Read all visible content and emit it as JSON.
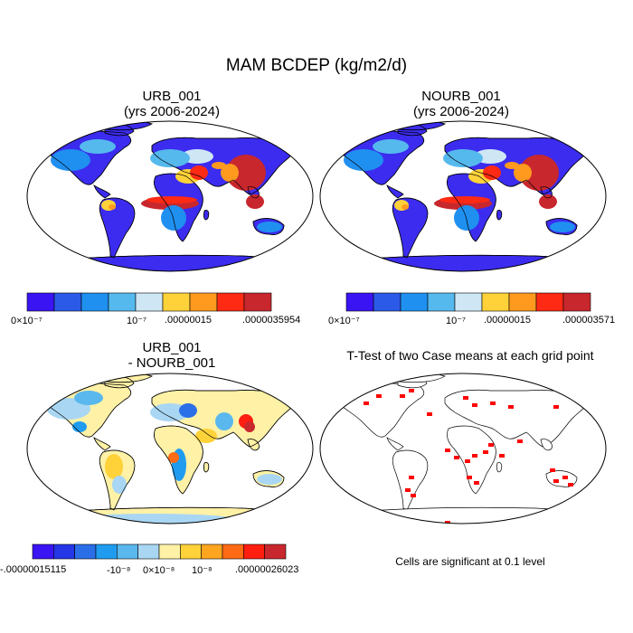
{
  "figure": {
    "title": "MAM BCDEP (kg/m2/d)"
  },
  "panels": [
    {
      "id": "urb",
      "title_line1": "URB_001",
      "title_line2": "(yrs 2006-2024)",
      "colorbar": {
        "colors": [
          "#3a14f2",
          "#2c5ae8",
          "#1f8ff0",
          "#55b9ee",
          "#cfe6f5",
          "#ffd23a",
          "#ff9a1f",
          "#ff2a14",
          "#c8282d"
        ],
        "labels": [
          "0×10⁻⁷",
          "10⁻⁷",
          ".00000015",
          ".0000035954"
        ]
      }
    },
    {
      "id": "nourb",
      "title_line1": "NOURB_001",
      "title_line2": "(yrs 2006-2024)",
      "colorbar": {
        "colors": [
          "#3a14f2",
          "#2c5ae8",
          "#1f8ff0",
          "#55b9ee",
          "#cfe6f5",
          "#ffd23a",
          "#ff9a1f",
          "#ff2a14",
          "#c8282d"
        ],
        "labels": [
          "0×10⁻⁷",
          "10⁻⁷",
          ".00000015",
          ".000003571"
        ]
      }
    },
    {
      "id": "diff",
      "title_line1": "URB_001",
      "title_line2": "- NOURB_001",
      "colorbar": {
        "colors": [
          "#3a14f2",
          "#2436e6",
          "#2a6ee8",
          "#1f9cf0",
          "#5ab8ee",
          "#a9d6f2",
          "#fff2a6",
          "#ffd23a",
          "#ffa51f",
          "#ff6a14",
          "#ff1e10",
          "#c8282d"
        ],
        "labels": [
          "-.00000015115",
          "-10⁻⁸",
          "0×10⁻⁸",
          "10⁻⁸",
          ".00000026023"
        ]
      }
    },
    {
      "id": "ttest",
      "title_line1": "T-Test of two Case means at each grid point",
      "title_line2": "",
      "note": "Cells are significant at 0.1 level"
    }
  ],
  "colors": {
    "ocean": "#ffffff",
    "outline": "#000000",
    "significant": "#ff0000"
  }
}
